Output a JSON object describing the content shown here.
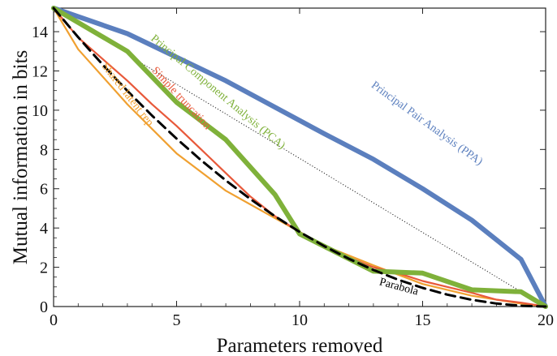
{
  "chart_data": {
    "type": "line",
    "title": "",
    "xlabel": "Parameters removed",
    "ylabel": "Mutual information in bits",
    "xlim": [
      0,
      20
    ],
    "ylim": [
      0,
      15.2
    ],
    "xticks": [
      0,
      5,
      10,
      15,
      20
    ],
    "yticks": [
      0,
      2,
      4,
      6,
      8,
      10,
      12,
      14
    ],
    "grid": false,
    "legend": "none",
    "series": [
      {
        "name": "Principal Pair Analysis (PPA)",
        "color": "#5b7fbe",
        "style": "solid",
        "width": 6,
        "x": [
          0,
          3,
          7,
          11,
          13,
          15,
          17,
          19,
          20
        ],
        "y": [
          15.2,
          13.9,
          11.5,
          8.8,
          7.5,
          6.0,
          4.4,
          2.4,
          0
        ]
      },
      {
        "name": "Principal Component Analysis (PCA)",
        "color": "#7fb13a",
        "style": "solid",
        "width": 6,
        "x": [
          0,
          3,
          5,
          7,
          9,
          10,
          13,
          15,
          17,
          19,
          20
        ],
        "y": [
          15.2,
          13.0,
          10.4,
          8.5,
          5.7,
          3.7,
          1.8,
          1.7,
          0.85,
          0.75,
          0
        ]
      },
      {
        "name": "Simple truncation",
        "color": "#e8593a",
        "style": "solid",
        "width": 2.2,
        "x": [
          0,
          1,
          2,
          3,
          4,
          5,
          6,
          7,
          8,
          9,
          10,
          11,
          12,
          13,
          14,
          15,
          16,
          17,
          18,
          19,
          20
        ],
        "y": [
          15.2,
          13.7,
          12.6,
          11.5,
          10.3,
          9.2,
          8.0,
          6.8,
          5.6,
          4.6,
          3.8,
          3.1,
          2.5,
          2.0,
          1.7,
          1.3,
          1.0,
          0.7,
          0.35,
          0.2,
          0
        ]
      },
      {
        "name": "Shared latent rep",
        "color": "#f0a030",
        "style": "solid",
        "width": 2.2,
        "x": [
          0,
          1,
          3,
          5,
          7,
          9,
          11,
          13,
          15,
          17,
          19,
          20
        ],
        "y": [
          15.2,
          13.1,
          10.3,
          7.8,
          5.9,
          4.5,
          3.1,
          2.1,
          1.15,
          0.55,
          0.15,
          0
        ]
      },
      {
        "name": "Parabola",
        "color": "#000000",
        "style": "dashed",
        "width": 3,
        "x": [
          0,
          1,
          2,
          3,
          4,
          5,
          6,
          7,
          8,
          9,
          10,
          11,
          12,
          13,
          14,
          15,
          16,
          17,
          18,
          19,
          20
        ],
        "y": [
          15.2,
          13.718,
          12.312,
          10.982,
          9.728,
          8.55,
          7.448,
          6.422,
          5.472,
          4.598,
          3.8,
          3.078,
          2.432,
          1.862,
          1.368,
          0.95,
          0.608,
          0.342,
          0.152,
          0.038,
          0
        ]
      },
      {
        "name": "",
        "color": "#222222",
        "style": "dotted",
        "width": 1,
        "x": [
          3.3,
          20
        ],
        "y": [
          12.6,
          0
        ]
      }
    ],
    "annotations": [
      {
        "text": "Principal Pair Analysis (PPA)",
        "color": "#5b7fbe",
        "x": 15.1,
        "y": 9.2,
        "angle": 36
      },
      {
        "text": "Principal Component Analysis (PCA)",
        "color": "#7fb13a",
        "x": 6.6,
        "y": 10.8,
        "angle": 40
      },
      {
        "text": "Simple truncation",
        "color": "#e8593a",
        "x": 5.1,
        "y": 10.5,
        "angle": 47
      },
      {
        "text": "Shared latent rep",
        "color": "#f0a030",
        "x": 2.9,
        "y": 10.7,
        "angle": 52
      },
      {
        "text": "Parabola",
        "color": "#000000",
        "x": 14.0,
        "y": 0.85,
        "angle": 15
      }
    ]
  }
}
